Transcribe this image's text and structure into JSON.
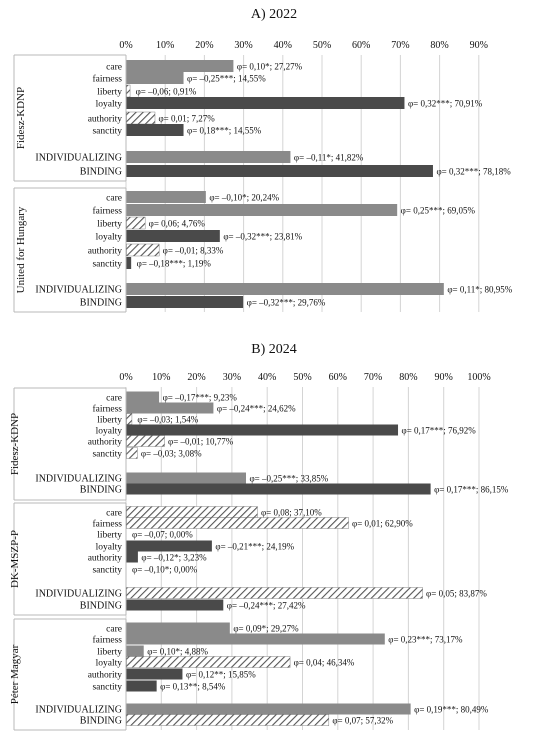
{
  "chart_data": [
    {
      "type": "bar",
      "title": "A) 2022",
      "xlim": [
        0,
        90
      ],
      "xticks": [
        "0%",
        "10%",
        "20%",
        "30%",
        "40%",
        "50%",
        "60%",
        "70%",
        "80%",
        "90%"
      ],
      "grid": true,
      "groups": [
        {
          "name": "Fidesz-KDNP",
          "bars": [
            {
              "label": "care",
              "value": 27.27,
              "annotation": "φ= 0,10*; 27,27%",
              "style": "light"
            },
            {
              "label": "fairness",
              "value": 14.55,
              "annotation": "φ= –0,25***; 14,55%",
              "style": "light"
            },
            {
              "label": "liberty",
              "value": 0.91,
              "annotation": "φ= –0,06; 0,91%",
              "style": "hatch"
            },
            {
              "label": "loyalty",
              "value": 70.91,
              "annotation": "φ= 0,32***; 70,91%",
              "style": "dark"
            },
            {
              "label": "authority",
              "value": 7.27,
              "annotation": "φ= 0,01; 7,27%",
              "style": "hatch"
            },
            {
              "label": "sanctity",
              "value": 14.55,
              "annotation": "φ= 0,18***; 14,55%",
              "style": "dark"
            },
            {
              "label": "INDIVIDUALIZING",
              "value": 41.82,
              "annotation": "φ= –0,11*; 41,82%",
              "style": "light"
            },
            {
              "label": "BINDING",
              "value": 78.18,
              "annotation": "φ= 0,32***; 78,18%",
              "style": "dark"
            }
          ]
        },
        {
          "name": "United for Hungary",
          "bars": [
            {
              "label": "care",
              "value": 20.24,
              "annotation": "φ= –0,10*; 20,24%",
              "style": "light"
            },
            {
              "label": "fairness",
              "value": 69.05,
              "annotation": "φ= 0,25***; 69,05%",
              "style": "light"
            },
            {
              "label": "liberty",
              "value": 4.76,
              "annotation": "φ= 0,06; 4,76%",
              "style": "hatch"
            },
            {
              "label": "loyalty",
              "value": 23.81,
              "annotation": "φ= –0,32***; 23,81%",
              "style": "dark"
            },
            {
              "label": "authority",
              "value": 8.33,
              "annotation": "φ= –0,01; 8,33%",
              "style": "hatch"
            },
            {
              "label": "sanctity",
              "value": 1.19,
              "annotation": "φ= –0,18***; 1,19%",
              "style": "dark"
            },
            {
              "label": "INDIVIDUALIZING",
              "value": 80.95,
              "annotation": "φ= 0,11*; 80,95%",
              "style": "light"
            },
            {
              "label": "BINDING",
              "value": 29.76,
              "annotation": "φ= –0,32***; 29,76%",
              "style": "dark"
            }
          ]
        }
      ]
    },
    {
      "type": "bar",
      "title": "B) 2024",
      "xlim": [
        0,
        100
      ],
      "xticks": [
        "0%",
        "10%",
        "20%",
        "30%",
        "40%",
        "50%",
        "60%",
        "70%",
        "80%",
        "90%",
        "100%"
      ],
      "grid": true,
      "groups": [
        {
          "name": "Fidesz-KDNP",
          "bars": [
            {
              "label": "care",
              "value": 9.23,
              "annotation": "φ= –0,17***; 9,23%",
              "style": "light"
            },
            {
              "label": "fairness",
              "value": 24.62,
              "annotation": "φ= –0,24***; 24,62%",
              "style": "light"
            },
            {
              "label": "liberty",
              "value": 1.54,
              "annotation": "φ= –0,03; 1,54%",
              "style": "hatch"
            },
            {
              "label": "loyalty",
              "value": 76.92,
              "annotation": "φ= 0,17***; 76,92%",
              "style": "dark"
            },
            {
              "label": "authority",
              "value": 10.77,
              "annotation": "φ= –0,01; 10,77%",
              "style": "hatch"
            },
            {
              "label": "sanctity",
              "value": 3.08,
              "annotation": "φ= –0,03; 3,08%",
              "style": "hatch"
            },
            {
              "label": "INDIVIDUALIZING",
              "value": 33.85,
              "annotation": "φ= –0,25***; 33,85%",
              "style": "light"
            },
            {
              "label": "BINDING",
              "value": 86.15,
              "annotation": "φ= 0,17***; 86,15%",
              "style": "dark"
            }
          ]
        },
        {
          "name": "DK-MSZP-P",
          "bars": [
            {
              "label": "care",
              "value": 37.1,
              "annotation": "φ= 0,08; 37,10%",
              "style": "hatch"
            },
            {
              "label": "fairness",
              "value": 62.9,
              "annotation": "φ= 0,01; 62,90%",
              "style": "hatch"
            },
            {
              "label": "liberty",
              "value": 0.0,
              "annotation": "φ= –0,07; 0,00%",
              "style": "hatch"
            },
            {
              "label": "loyalty",
              "value": 24.19,
              "annotation": "φ= –0,21***; 24,19%",
              "style": "dark"
            },
            {
              "label": "authority",
              "value": 3.23,
              "annotation": "φ= –0,12*; 3,23%",
              "style": "dark"
            },
            {
              "label": "sanctity",
              "value": 0.0,
              "annotation": "φ= –0,10*; 0,00%",
              "style": "dark"
            },
            {
              "label": "INDIVIDUALIZING",
              "value": 83.87,
              "annotation": "φ= 0,05; 83,87%",
              "style": "hatch"
            },
            {
              "label": "BINDING",
              "value": 27.42,
              "annotation": "φ= –0,24***; 27,42%",
              "style": "dark"
            }
          ]
        },
        {
          "name": "Péter Magyar",
          "bars": [
            {
              "label": "care",
              "value": 29.27,
              "annotation": "φ= 0,09*; 29,27%",
              "style": "light"
            },
            {
              "label": "fairness",
              "value": 73.17,
              "annotation": "φ= 0,23***; 73,17%",
              "style": "light"
            },
            {
              "label": "liberty",
              "value": 4.88,
              "annotation": "φ= 0,10*; 4,88%",
              "style": "light"
            },
            {
              "label": "loyalty",
              "value": 46.34,
              "annotation": "φ= 0,04; 46,34%",
              "style": "hatch"
            },
            {
              "label": "authority",
              "value": 15.85,
              "annotation": "φ= 0,12**; 15,85%",
              "style": "dark"
            },
            {
              "label": "sanctity",
              "value": 8.54,
              "annotation": "φ= 0,13**; 8,54%",
              "style": "dark"
            },
            {
              "label": "INDIVIDUALIZING",
              "value": 80.49,
              "annotation": "φ= 0,19***; 80,49%",
              "style": "light"
            },
            {
              "label": "BINDING",
              "value": 57.32,
              "annotation": "φ= 0,07; 57,32%",
              "style": "hatch"
            }
          ]
        }
      ]
    }
  ],
  "colors": {
    "light": "#8a8a8a",
    "dark": "#4a4a4a",
    "hatch": "#5a5a5a",
    "grid": "#d4d4d4",
    "axis": "#b8b8b8"
  }
}
